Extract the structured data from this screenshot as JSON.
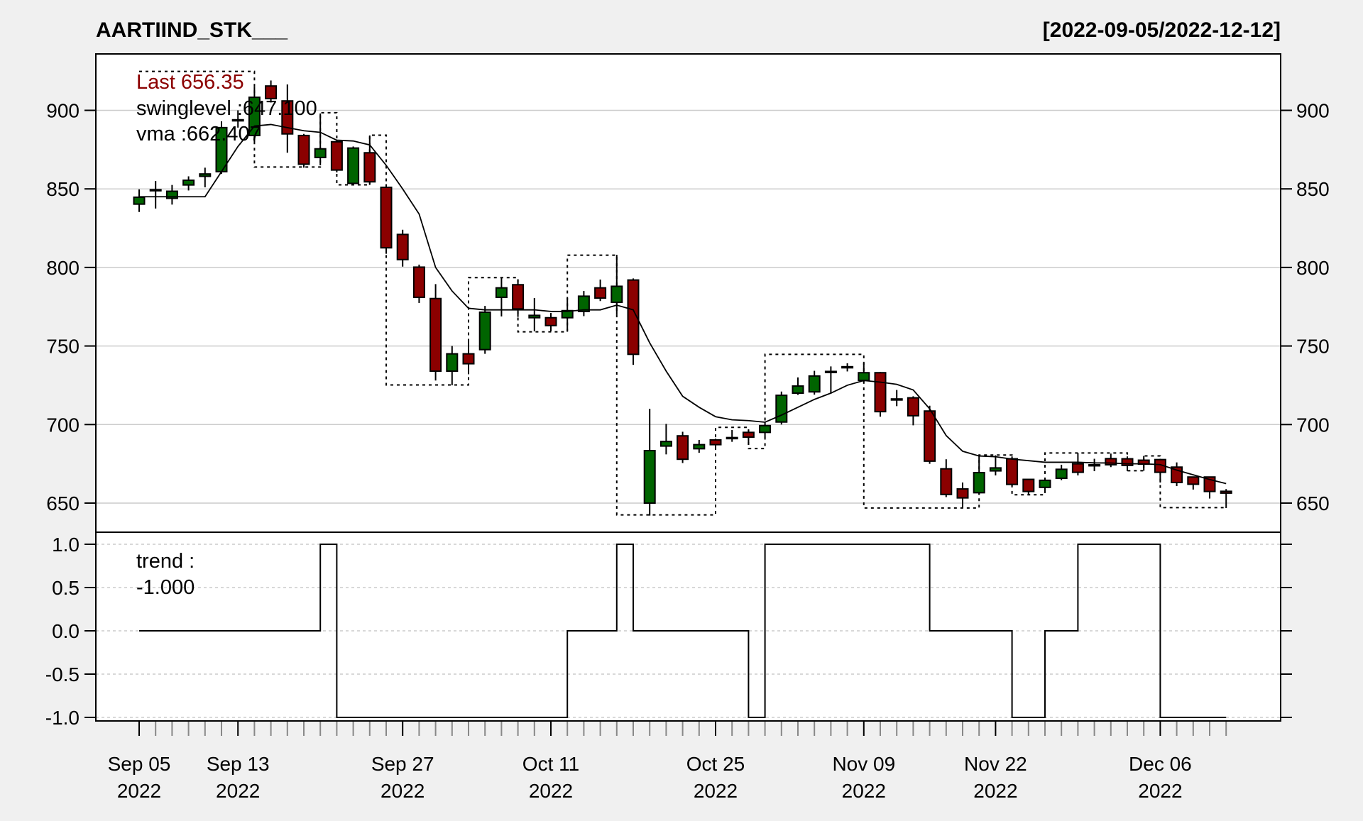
{
  "title": "AARTIIND_STK___",
  "date_range": "[2022-09-05/2022-12-12]",
  "legend": {
    "last": "Last 656.35",
    "swinglevel": "swinglevel :647.100",
    "vma": "vma :662.407",
    "trend_label": "trend :",
    "trend_value": "-1.000"
  },
  "colors": {
    "up": "#006400",
    "down": "#8b0000",
    "last_text": "#8b0000",
    "grid": "#cccccc",
    "background": "#f0f0f0",
    "panel": "#ffffff"
  },
  "chart_data": [
    {
      "type": "candlestick",
      "title": "AARTIIND_STK___",
      "ylim": [
        630,
        935
      ],
      "y_ticks": [
        650,
        700,
        750,
        800,
        850,
        900
      ],
      "grid": true,
      "legend_placement": "top-left",
      "x_ticks": [
        {
          "index": 0,
          "label": "Sep 05",
          "year": "2022"
        },
        {
          "index": 6,
          "label": "Sep 13",
          "year": "2022"
        },
        {
          "index": 16,
          "label": "Sep 27",
          "year": "2022"
        },
        {
          "index": 25,
          "label": "Oct 11",
          "year": "2022"
        },
        {
          "index": 35,
          "label": "Oct 25",
          "year": "2022"
        },
        {
          "index": 44,
          "label": "Nov 09",
          "year": "2022"
        },
        {
          "index": 52,
          "label": "Nov 22",
          "year": "2022"
        },
        {
          "index": 62,
          "label": "Dec 06",
          "year": "2022"
        }
      ],
      "ohlc": [
        [
          840.3,
          849.7,
          835.3,
          844.7
        ],
        [
          849.5,
          855,
          837.5,
          849.5
        ],
        [
          844,
          852.5,
          840,
          848.5
        ],
        [
          852.5,
          858,
          849,
          855.5
        ],
        [
          858,
          863.5,
          851,
          859.5
        ],
        [
          861,
          893,
          859.5,
          889
        ],
        [
          894,
          900,
          889,
          894
        ],
        [
          884,
          915,
          880,
          908.3
        ],
        [
          915.5,
          919,
          905,
          907.5
        ],
        [
          906,
          916.5,
          873,
          885
        ],
        [
          884,
          885,
          863.5,
          865.7
        ],
        [
          870,
          898,
          865,
          875.5
        ],
        [
          880,
          881,
          860.5,
          862
        ],
        [
          853.5,
          877,
          852.5,
          876
        ],
        [
          873,
          884,
          852.5,
          854.5
        ],
        [
          851,
          853,
          808.7,
          812.5
        ],
        [
          821,
          824,
          800.5,
          805
        ],
        [
          800.2,
          801.8,
          777.4,
          781
        ],
        [
          780.2,
          789.4,
          728,
          734
        ],
        [
          734,
          750,
          725,
          745
        ],
        [
          745,
          752.8,
          732,
          738.7
        ],
        [
          747.7,
          775.5,
          745,
          771.5
        ],
        [
          781,
          793.6,
          768.8,
          787
        ],
        [
          789,
          792,
          768.5,
          773.6
        ],
        [
          768,
          780.5,
          759.3,
          769.5
        ],
        [
          768,
          771,
          759.3,
          763
        ],
        [
          768,
          780.5,
          759.5,
          772.5
        ],
        [
          772,
          785,
          769,
          781.7
        ],
        [
          787,
          792.3,
          778.6,
          780.5
        ],
        [
          777.8,
          808,
          770,
          788
        ],
        [
          792,
          793,
          738,
          744.7
        ],
        [
          650,
          710,
          642,
          683.4
        ],
        [
          686.3,
          700.4,
          681,
          689.2
        ],
        [
          692.8,
          695.4,
          675.5,
          677.9
        ],
        [
          684.6,
          690.2,
          682,
          687.2
        ],
        [
          690.2,
          691,
          685,
          687.2
        ],
        [
          691.7,
          696.5,
          689,
          691.7
        ],
        [
          695,
          696.5,
          687,
          692
        ],
        [
          695,
          701.6,
          691.7,
          699.3
        ],
        [
          701.6,
          721,
          700,
          718.6
        ],
        [
          720,
          730,
          718.9,
          724.5
        ],
        [
          720.8,
          734.2,
          719,
          730.9
        ],
        [
          733.8,
          737,
          719.7,
          733.8
        ],
        [
          736.8,
          739,
          733.8,
          736.8
        ],
        [
          728.1,
          739,
          727,
          733
        ],
        [
          733,
          733.5,
          705,
          708.2
        ],
        [
          716.3,
          722,
          711.7,
          716.3
        ],
        [
          717,
          718,
          699.5,
          705.6
        ],
        [
          708.6,
          712,
          675,
          676.7
        ],
        [
          671.8,
          677.9,
          653.8,
          655.5
        ],
        [
          659,
          663.1,
          646.8,
          653.3
        ],
        [
          656.6,
          680.4,
          655.3,
          669.4
        ],
        [
          670.5,
          680.4,
          667.6,
          672.4
        ],
        [
          678.2,
          679.7,
          660.8,
          661.9
        ],
        [
          665.1,
          665.1,
          655.3,
          657.4
        ],
        [
          660,
          665.8,
          656.8,
          664.5
        ],
        [
          665.8,
          674.4,
          664.6,
          671.5
        ],
        [
          675,
          681.9,
          667.6,
          669.6
        ],
        [
          674.4,
          678.2,
          670.3,
          674.4
        ],
        [
          678.3,
          681.5,
          672.9,
          674.4
        ],
        [
          678.2,
          679.7,
          670.3,
          674
        ],
        [
          677.3,
          680,
          670.6,
          674.8
        ],
        [
          677.7,
          678.2,
          663.1,
          669.6
        ],
        [
          672.9,
          675.9,
          660.8,
          663.1
        ],
        [
          666.6,
          666.6,
          658.6,
          662
        ],
        [
          666.6,
          666.6,
          652.9,
          657.4
        ],
        [
          657.5,
          658.9,
          646.8,
          656.35
        ]
      ],
      "vma": [
        845,
        845,
        845,
        845,
        845,
        861,
        877,
        890,
        891,
        889,
        887,
        886,
        881,
        880.5,
        878,
        865,
        850,
        834,
        800,
        785,
        774,
        773,
        773,
        773,
        773,
        772,
        772,
        773,
        773,
        776,
        773,
        752,
        734,
        718,
        711,
        705,
        703,
        702.5,
        701.5,
        706,
        711,
        716,
        720,
        725,
        728,
        727,
        725.6,
        722,
        710,
        693,
        683,
        680,
        679.5,
        678,
        677,
        676,
        676,
        676,
        675.6,
        675.5,
        675,
        675,
        674.5,
        671,
        668,
        665,
        662.4
      ],
      "swinglevel_steps": [
        {
          "from": 0,
          "to": 7,
          "level": 924.8
        },
        {
          "from": 7,
          "to": 11,
          "level": 863.9
        },
        {
          "from": 11,
          "to": 12,
          "level": 898.5
        },
        {
          "from": 12,
          "to": 14,
          "level": 852.6
        },
        {
          "from": 14,
          "to": 15,
          "level": 884.2
        },
        {
          "from": 15,
          "to": 20,
          "level": 725.2
        },
        {
          "from": 20,
          "to": 23,
          "level": 793.5
        },
        {
          "from": 23,
          "to": 26,
          "level": 759
        },
        {
          "from": 26,
          "to": 29,
          "level": 807.8
        },
        {
          "from": 29,
          "to": 35,
          "level": 642.5
        },
        {
          "from": 35,
          "to": 37,
          "level": 698.2
        },
        {
          "from": 37,
          "to": 38,
          "level": 684.7
        },
        {
          "from": 38,
          "to": 44,
          "level": 744.7
        },
        {
          "from": 44,
          "to": 51,
          "level": 646.9
        },
        {
          "from": 51,
          "to": 53,
          "level": 680.6
        },
        {
          "from": 53,
          "to": 55,
          "level": 655.3
        },
        {
          "from": 55,
          "to": 60,
          "level": 681.9
        },
        {
          "from": 60,
          "to": 61,
          "level": 670.6
        },
        {
          "from": 61,
          "to": 62,
          "level": 680
        },
        {
          "from": 62,
          "to": 66,
          "level": 647.1
        }
      ]
    },
    {
      "type": "line",
      "series_label": "trend",
      "ylim": [
        -1,
        1
      ],
      "y_ticks": [
        "1.0",
        "0.5",
        "0.0",
        "-0.5",
        "-1.0"
      ],
      "grid": true,
      "trend_steps": [
        {
          "from": 0,
          "to": 11,
          "value": 0
        },
        {
          "from": 11,
          "to": 12,
          "value": 1
        },
        {
          "from": 12,
          "to": 26,
          "value": -1
        },
        {
          "from": 26,
          "to": 29,
          "value": 0
        },
        {
          "from": 29,
          "to": 30,
          "value": 1
        },
        {
          "from": 30,
          "to": 37,
          "value": 0
        },
        {
          "from": 37,
          "to": 38,
          "value": -1
        },
        {
          "from": 38,
          "to": 48,
          "value": 1
        },
        {
          "from": 48,
          "to": 53,
          "value": 0
        },
        {
          "from": 53,
          "to": 55,
          "value": -1
        },
        {
          "from": 55,
          "to": 57,
          "value": 0
        },
        {
          "from": 57,
          "to": 62,
          "value": 1
        },
        {
          "from": 62,
          "to": 66,
          "value": -1
        }
      ]
    }
  ]
}
